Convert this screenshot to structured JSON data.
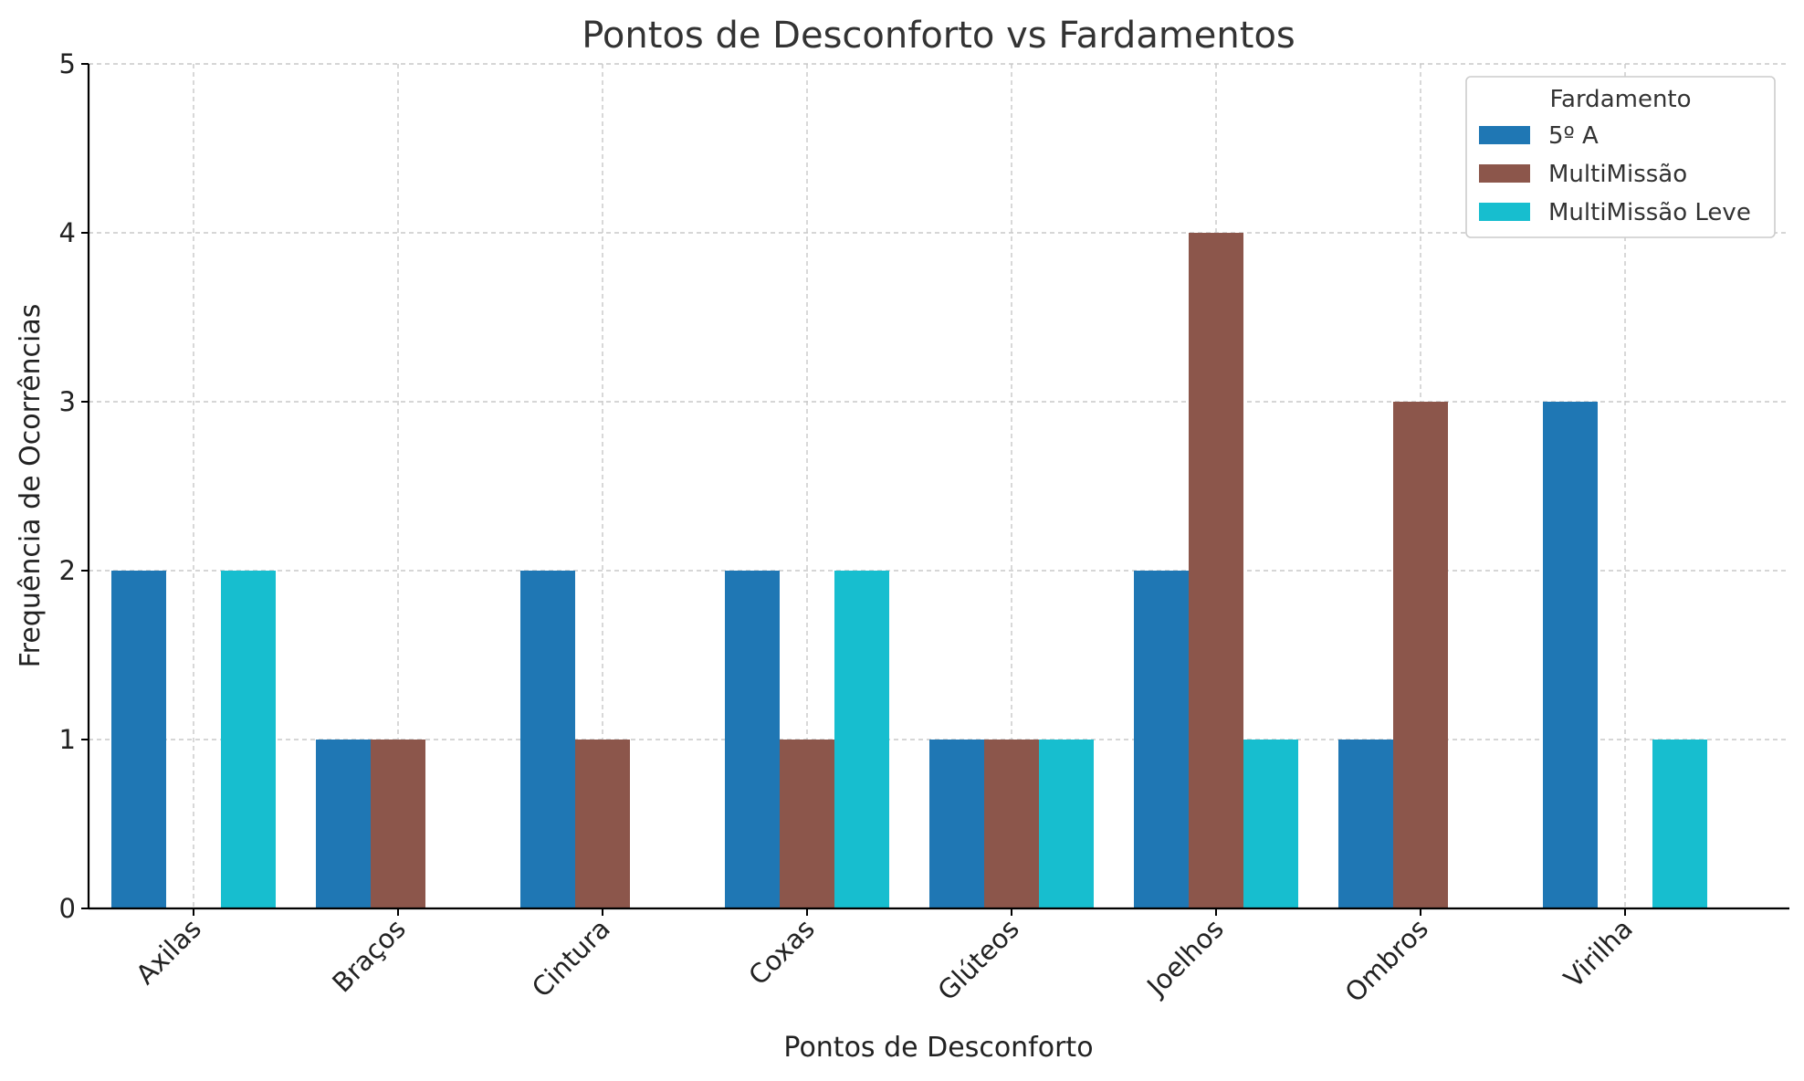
{
  "chart_data": {
    "type": "bar",
    "title": "Pontos de Desconforto vs Fardamentos",
    "xlabel": "Pontos de Desconforto",
    "ylabel": "Frequência de Ocorrências",
    "categories": [
      "Axilas",
      "Braços",
      "Cintura",
      "Coxas",
      "Glúteos",
      "Joelhos",
      "Ombros",
      "Virilha"
    ],
    "ylim": [
      0,
      5
    ],
    "yticks": [
      "0",
      "1",
      "2",
      "3",
      "4",
      "5"
    ],
    "grid": true,
    "legend": {
      "title": "Fardamento",
      "placement": "top-right"
    },
    "series": [
      {
        "name": "5º A",
        "color": "#1f77b4",
        "values": [
          2,
          1,
          2,
          2,
          1,
          2,
          1,
          3
        ]
      },
      {
        "name": "MultiMissão",
        "color": "#8c564b",
        "values": [
          0,
          1,
          1,
          1,
          1,
          4,
          3,
          0
        ]
      },
      {
        "name": "MultiMissão Leve",
        "color": "#17becf",
        "values": [
          2,
          0,
          0,
          2,
          1,
          1,
          0,
          1
        ]
      }
    ]
  }
}
